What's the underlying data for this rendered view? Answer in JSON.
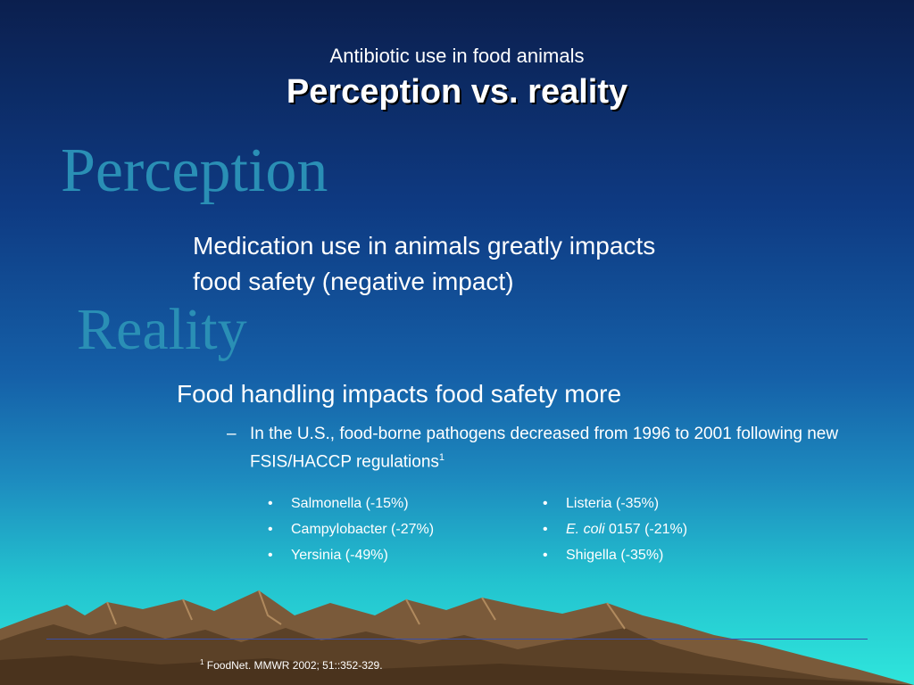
{
  "header": {
    "subtitle": "Antibiotic use in food animals",
    "title": "Perception vs. reality"
  },
  "perception": {
    "heading": "Perception",
    "lines": [
      "Medication use in animals greatly impacts",
      "food safety (negative impact)"
    ]
  },
  "reality": {
    "heading": "Reality",
    "point": "Food handling impacts food safety more",
    "dash": "–",
    "subpoint": "In the U.S., food-borne pathogens decreased from 1996 to 2001 following new FSIS/HACCP regulations",
    "subpoint_ref": "1"
  },
  "pathogens": {
    "bullet": "•",
    "left": [
      "Salmonella (-15%)",
      "Campylobacter (-27%)",
      "Yersinia (-49%)"
    ],
    "right": [
      {
        "italic": "",
        "text": "Listeria (-35%)"
      },
      {
        "italic": "E. coli",
        "text": " 0157 (-21%)"
      },
      {
        "italic": "",
        "text": "Shigella (-35%)"
      }
    ]
  },
  "footnote": {
    "ref": "1",
    "text": " FoodNet. MMWR 2002; 51::352-329."
  },
  "colors": {
    "heading_teal": "#2a8fb5",
    "background_top": "#0b1f4e",
    "background_bottom": "#2fe6dc"
  }
}
